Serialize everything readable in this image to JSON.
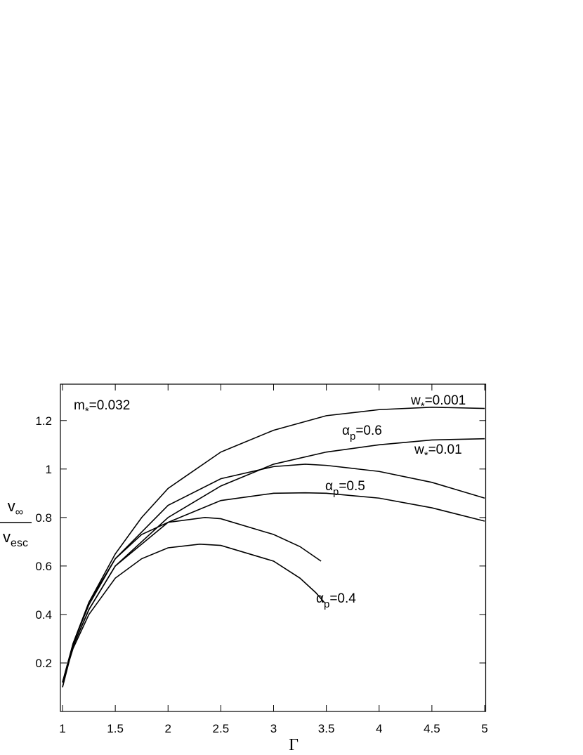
{
  "chart_data": {
    "type": "line",
    "x_label": "Γ",
    "y_label": {
      "numerator": {
        "base": "v",
        "sub": "∞"
      },
      "denominator": {
        "base": "v",
        "sub": "esc"
      }
    },
    "xlim": [
      0.98,
      5.01
    ],
    "ylim": [
      0,
      1.35
    ],
    "xticks": [
      1,
      1.5,
      2,
      2.5,
      3,
      3.5,
      4,
      4.5,
      5
    ],
    "yticks": [
      0.2,
      0.4,
      0.6,
      0.8,
      1,
      1.2
    ],
    "color": "#000000",
    "annotations": [
      {
        "base": "m",
        "sub": "*",
        "rest": "=0.032"
      },
      {
        "base": "w",
        "sub": "*",
        "rest": "=0.001"
      },
      {
        "base": "α",
        "sub": "p",
        "rest": "=0.6"
      },
      {
        "base": "w",
        "sub": "*",
        "rest": "=0.01"
      },
      {
        "base": "α",
        "sub": "p",
        "rest": "=0.5"
      },
      {
        "base": "α",
        "sub": "p",
        "rest": "=0.4"
      }
    ],
    "series": [
      {
        "x": [
          1,
          1.1,
          1.25,
          1.5,
          1.75,
          2,
          2.5,
          3,
          3.5,
          4,
          4.5,
          5
        ],
        "values": [
          0.1,
          0.28,
          0.45,
          0.65,
          0.8,
          0.92,
          1.07,
          1.16,
          1.22,
          1.245,
          1.255,
          1.25
        ]
      },
      {
        "x": [
          1,
          1.1,
          1.25,
          1.5,
          2,
          2.5,
          3,
          3.5,
          4,
          4.5,
          5
        ],
        "values": [
          0.1,
          0.27,
          0.42,
          0.6,
          0.8,
          0.93,
          1.02,
          1.07,
          1.1,
          1.12,
          1.125
        ]
      },
      {
        "x": [
          1,
          1.1,
          1.25,
          1.5,
          2,
          2.5,
          3,
          3.3,
          3.5,
          4,
          4.5,
          5
        ],
        "values": [
          0.12,
          0.28,
          0.44,
          0.63,
          0.85,
          0.96,
          1.01,
          1.02,
          1.015,
          0.99,
          0.945,
          0.88
        ]
      },
      {
        "x": [
          1,
          1.1,
          1.25,
          1.5,
          2,
          2.5,
          3,
          3.3,
          3.5,
          4,
          4.5,
          5
        ],
        "values": [
          0.12,
          0.27,
          0.42,
          0.6,
          0.78,
          0.87,
          0.9,
          0.902,
          0.9,
          0.88,
          0.84,
          0.785
        ]
      },
      {
        "x": [
          1,
          1.1,
          1.25,
          1.5,
          1.75,
          2,
          2.35,
          2.5,
          3,
          3.25,
          3.45
        ],
        "values": [
          0.12,
          0.28,
          0.45,
          0.63,
          0.73,
          0.78,
          0.8,
          0.795,
          0.73,
          0.68,
          0.62
        ]
      },
      {
        "x": [
          1,
          1.1,
          1.25,
          1.5,
          1.75,
          2,
          2.3,
          2.5,
          3,
          3.25,
          3.4,
          3.48
        ],
        "values": [
          0.12,
          0.26,
          0.4,
          0.55,
          0.63,
          0.675,
          0.69,
          0.685,
          0.62,
          0.55,
          0.49,
          0.45
        ]
      }
    ]
  }
}
